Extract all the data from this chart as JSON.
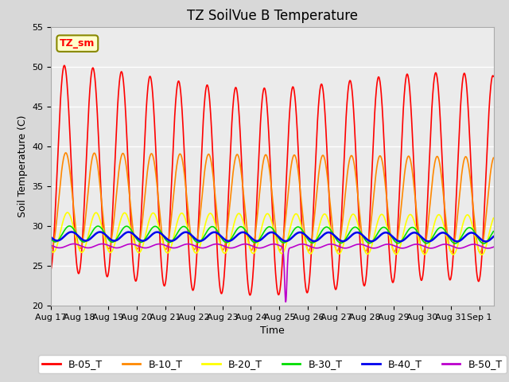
{
  "title": "TZ SoilVue B Temperature",
  "xlabel": "Time",
  "ylabel": "Soil Temperature (C)",
  "ylim": [
    20,
    55
  ],
  "xlim": [
    0,
    15.5
  ],
  "x_tick_labels": [
    "Aug 17",
    "Aug 18",
    "Aug 19",
    "Aug 20",
    "Aug 21",
    "Aug 22",
    "Aug 23",
    "Aug 24",
    "Aug 25",
    "Aug 26",
    "Aug 27",
    "Aug 28",
    "Aug 29",
    "Aug 30",
    "Aug 31",
    "Sep 1"
  ],
  "series_colors": {
    "B-05_T": "#ff0000",
    "B-10_T": "#ff8800",
    "B-20_T": "#ffff00",
    "B-30_T": "#00dd00",
    "B-40_T": "#0000ee",
    "B-50_T": "#bb00cc"
  },
  "series_linewidths": {
    "B-05_T": 1.2,
    "B-10_T": 1.2,
    "B-20_T": 1.2,
    "B-30_T": 1.2,
    "B-40_T": 1.8,
    "B-50_T": 1.2
  },
  "legend_order": [
    "B-05_T",
    "B-10_T",
    "B-20_T",
    "B-30_T",
    "B-40_T",
    "B-50_T"
  ],
  "annotation_label": "TZ_sm",
  "bg_color": "#d8d8d8",
  "plot_bg_color": "#ebebeb",
  "title_fontsize": 12,
  "axis_fontsize": 8,
  "legend_fontsize": 9,
  "yticks": [
    20,
    25,
    30,
    35,
    40,
    45,
    50,
    55
  ]
}
